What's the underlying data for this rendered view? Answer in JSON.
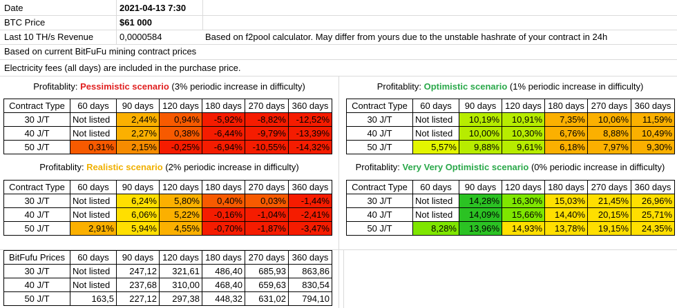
{
  "header": {
    "date_label": "Date",
    "date_value": "2021-04-13 7:30",
    "price_label": "BTC Price",
    "price_value": "$61 000",
    "revenue_label": "Last 10 TH/s Revenue",
    "revenue_value": "0,0000584",
    "revenue_note": "Based on f2pool calculator. May differ from yours due to the unstable hashrate of your contract in 24h",
    "note1": "Based on current BitFuFu mining contract prices",
    "note2": "Electricity fees (all days) are included in the purchase price."
  },
  "columns": [
    "Contract Type",
    "60 days",
    "90 days",
    "120 days",
    "180 days",
    "270 days",
    "360 days"
  ],
  "price_columns": [
    "BitFufu Prices",
    "60 days",
    "90 days",
    "120 days",
    "180 days",
    "270 days",
    "360 days"
  ],
  "colors": {
    "red": "#f51c00",
    "deep_orange": "#f75a00",
    "orange": "#f68b00",
    "amber": "#fbb000",
    "yellow": "#ffdf00",
    "lime": "#e3f500",
    "yellow_green": "#b7ec00",
    "light_green": "#7fe600",
    "green": "#2bc223"
  },
  "tables": {
    "pessimistic": {
      "caption_prefix": "Profitablity: ",
      "caption_highlight": "Pessimistic scenario",
      "caption_suffix": " (3% periodic increase in difficulty)",
      "rows": [
        {
          "type": "30 J/T",
          "cells": [
            {
              "v": "Not listed",
              "c": ""
            },
            {
              "v": "2,44%",
              "c": "amber"
            },
            {
              "v": "0,94%",
              "c": "deep_orange"
            },
            {
              "v": "-5,92%",
              "c": "red"
            },
            {
              "v": "-8,82%",
              "c": "red"
            },
            {
              "v": "-12,52%",
              "c": "red"
            }
          ]
        },
        {
          "type": "40 J/T",
          "cells": [
            {
              "v": "Not listed",
              "c": ""
            },
            {
              "v": "2,27%",
              "c": "amber"
            },
            {
              "v": "0,38%",
              "c": "deep_orange"
            },
            {
              "v": "-6,44%",
              "c": "red"
            },
            {
              "v": "-9,79%",
              "c": "red"
            },
            {
              "v": "-13,39%",
              "c": "red"
            }
          ]
        },
        {
          "type": "50 J/T",
          "cells": [
            {
              "v": "0,31%",
              "c": "deep_orange"
            },
            {
              "v": "2,15%",
              "c": "orange"
            },
            {
              "v": "-0,25%",
              "c": "red"
            },
            {
              "v": "-6,94%",
              "c": "red"
            },
            {
              "v": "-10,55%",
              "c": "red"
            },
            {
              "v": "-14,32%",
              "c": "red"
            }
          ]
        }
      ]
    },
    "optimistic": {
      "caption_prefix": "Profitablity: ",
      "caption_highlight": "Optimistic scenario",
      "caption_suffix": " (1% periodic increase in difficulty)",
      "rows": [
        {
          "type": "30 J/T",
          "cells": [
            {
              "v": "Not listed",
              "c": ""
            },
            {
              "v": "10,19%",
              "c": "yellow_green"
            },
            {
              "v": "10,91%",
              "c": "yellow_green"
            },
            {
              "v": "7,35%",
              "c": "amber"
            },
            {
              "v": "10,06%",
              "c": "amber"
            },
            {
              "v": "11,59%",
              "c": "amber"
            }
          ]
        },
        {
          "type": "40 J/T",
          "cells": [
            {
              "v": "Not listed",
              "c": ""
            },
            {
              "v": "10,00%",
              "c": "yellow_green"
            },
            {
              "v": "10,30%",
              "c": "yellow_green"
            },
            {
              "v": "6,76%",
              "c": "amber"
            },
            {
              "v": "8,88%",
              "c": "amber"
            },
            {
              "v": "10,49%",
              "c": "amber"
            }
          ]
        },
        {
          "type": "50 J/T",
          "cells": [
            {
              "v": "5,57%",
              "c": "lime"
            },
            {
              "v": "9,88%",
              "c": "yellow_green"
            },
            {
              "v": "9,61%",
              "c": "yellow_green"
            },
            {
              "v": "6,18%",
              "c": "amber"
            },
            {
              "v": "7,97%",
              "c": "amber"
            },
            {
              "v": "9,30%",
              "c": "amber"
            }
          ]
        }
      ]
    },
    "realistic": {
      "caption_prefix": "Profitablity: ",
      "caption_highlight": "Realistic scenario",
      "caption_suffix": " (2% periodic increase in difficulty)",
      "rows": [
        {
          "type": "30 J/T",
          "cells": [
            {
              "v": "Not listed",
              "c": ""
            },
            {
              "v": "6,24%",
              "c": "yellow"
            },
            {
              "v": "5,80%",
              "c": "amber"
            },
            {
              "v": "0,40%",
              "c": "deep_orange"
            },
            {
              "v": "0,03%",
              "c": "deep_orange"
            },
            {
              "v": "-1,44%",
              "c": "red"
            }
          ]
        },
        {
          "type": "40 J/T",
          "cells": [
            {
              "v": "Not listed",
              "c": ""
            },
            {
              "v": "6,06%",
              "c": "yellow"
            },
            {
              "v": "5,22%",
              "c": "amber"
            },
            {
              "v": "-0,16%",
              "c": "red"
            },
            {
              "v": "-1,04%",
              "c": "red"
            },
            {
              "v": "-2,41%",
              "c": "red"
            }
          ]
        },
        {
          "type": "50 J/T",
          "cells": [
            {
              "v": "2,91%",
              "c": "amber"
            },
            {
              "v": "5,94%",
              "c": "yellow"
            },
            {
              "v": "4,55%",
              "c": "amber"
            },
            {
              "v": "-0,70%",
              "c": "red"
            },
            {
              "v": "-1,87%",
              "c": "red"
            },
            {
              "v": "-3,47%",
              "c": "red"
            }
          ]
        }
      ]
    },
    "very_optimistic": {
      "caption_prefix": "Profitablity: ",
      "caption_highlight": "Very Very Optimistic scenario",
      "caption_suffix": " (0% periodic increase in difficulty)",
      "rows": [
        {
          "type": "30 J/T",
          "cells": [
            {
              "v": "Not listed",
              "c": ""
            },
            {
              "v": "14,28%",
              "c": "green"
            },
            {
              "v": "16,30%",
              "c": "light_green"
            },
            {
              "v": "15,03%",
              "c": "yellow"
            },
            {
              "v": "21,45%",
              "c": "yellow"
            },
            {
              "v": "26,96%",
              "c": "yellow"
            }
          ]
        },
        {
          "type": "40 J/T",
          "cells": [
            {
              "v": "Not listed",
              "c": ""
            },
            {
              "v": "14,09%",
              "c": "green"
            },
            {
              "v": "15,66%",
              "c": "light_green"
            },
            {
              "v": "14,40%",
              "c": "yellow"
            },
            {
              "v": "20,15%",
              "c": "yellow"
            },
            {
              "v": "25,71%",
              "c": "yellow"
            }
          ]
        },
        {
          "type": "50 J/T",
          "cells": [
            {
              "v": "8,28%",
              "c": "light_green"
            },
            {
              "v": "13,96%",
              "c": "green"
            },
            {
              "v": "14,93%",
              "c": "yellow"
            },
            {
              "v": "13,78%",
              "c": "yellow"
            },
            {
              "v": "19,15%",
              "c": "yellow"
            },
            {
              "v": "24,35%",
              "c": "yellow"
            }
          ]
        }
      ]
    },
    "prices": {
      "rows": [
        {
          "type": "30 J/T",
          "cells": [
            {
              "v": "Not listed",
              "c": ""
            },
            {
              "v": "247,12",
              "c": ""
            },
            {
              "v": "321,61",
              "c": ""
            },
            {
              "v": "486,40",
              "c": ""
            },
            {
              "v": "685,93",
              "c": ""
            },
            {
              "v": "863,86",
              "c": ""
            }
          ]
        },
        {
          "type": "40 J/T",
          "cells": [
            {
              "v": "Not listed",
              "c": ""
            },
            {
              "v": "237,68",
              "c": ""
            },
            {
              "v": "310,00",
              "c": ""
            },
            {
              "v": "468,40",
              "c": ""
            },
            {
              "v": "659,63",
              "c": ""
            },
            {
              "v": "830,54",
              "c": ""
            }
          ]
        },
        {
          "type": "50 J/T",
          "cells": [
            {
              "v": "163,5",
              "c": ""
            },
            {
              "v": "227,12",
              "c": ""
            },
            {
              "v": "297,38",
              "c": ""
            },
            {
              "v": "448,32",
              "c": ""
            },
            {
              "v": "631,02",
              "c": ""
            },
            {
              "v": "794,10",
              "c": ""
            }
          ]
        }
      ]
    }
  }
}
